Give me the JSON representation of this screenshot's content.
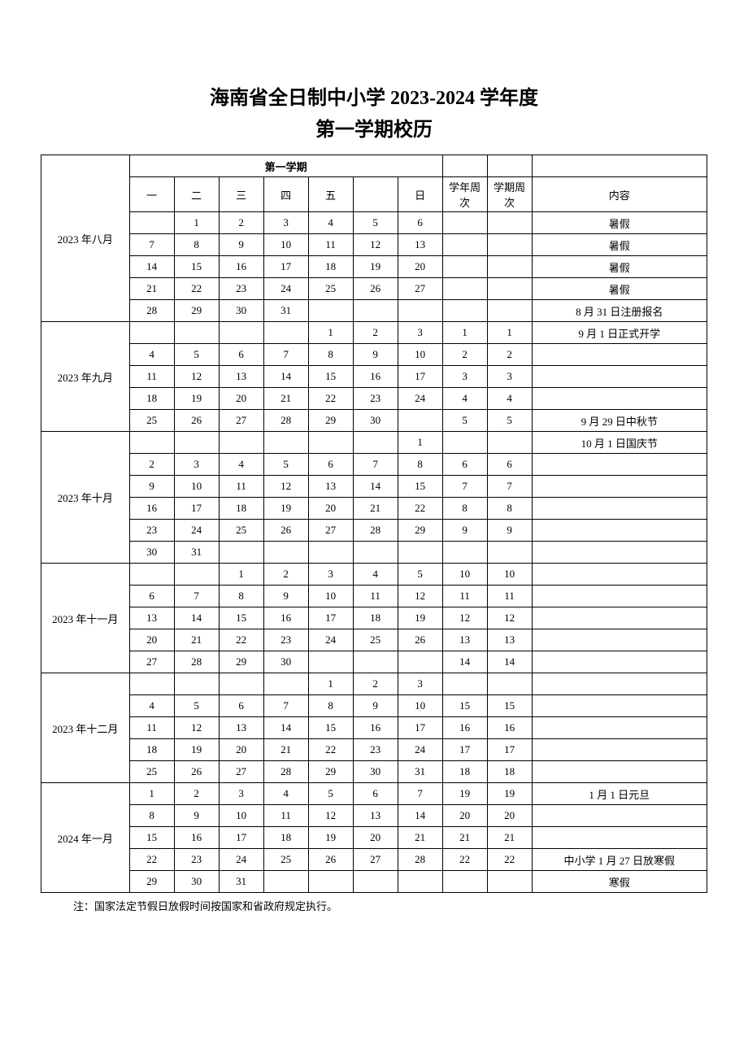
{
  "title_line1": "海南省全日制中小学 2023-2024 学年度",
  "title_line2": "第一学期校历",
  "semester_header": "第一学期",
  "weekday_headers": [
    "一",
    "二",
    "三",
    "四",
    "五",
    "",
    "日"
  ],
  "year_week_header": "学年周次",
  "term_week_header": "学期周次",
  "content_header": "内容",
  "note": "注：国家法定节假日放假时间按国家和省政府规定执行。",
  "months": [
    {
      "label": "2023 年八月",
      "rows": [
        {
          "d": [
            "",
            "1",
            "2",
            "3",
            "4",
            "5",
            "6"
          ],
          "yw": "",
          "tw": "",
          "c": "暑假"
        },
        {
          "d": [
            "7",
            "8",
            "9",
            "10",
            "11",
            "12",
            "13"
          ],
          "yw": "",
          "tw": "",
          "c": "暑假"
        },
        {
          "d": [
            "14",
            "15",
            "16",
            "17",
            "18",
            "19",
            "20"
          ],
          "yw": "",
          "tw": "",
          "c": "暑假"
        },
        {
          "d": [
            "21",
            "22",
            "23",
            "24",
            "25",
            "26",
            "27"
          ],
          "yw": "",
          "tw": "",
          "c": "暑假"
        },
        {
          "d": [
            "28",
            "29",
            "30",
            "31",
            "",
            "",
            ""
          ],
          "yw": "",
          "tw": "",
          "c": "8 月 31 日注册报名"
        }
      ]
    },
    {
      "label": "2023 年九月",
      "rows": [
        {
          "d": [
            "",
            "",
            "",
            "",
            "1",
            "2",
            "3"
          ],
          "yw": "1",
          "tw": "1",
          "c": "9 月 1 日正式开学"
        },
        {
          "d": [
            "4",
            "5",
            "6",
            "7",
            "8",
            "9",
            "10"
          ],
          "yw": "2",
          "tw": "2",
          "c": ""
        },
        {
          "d": [
            "11",
            "12",
            "13",
            "14",
            "15",
            "16",
            "17"
          ],
          "yw": "3",
          "tw": "3",
          "c": ""
        },
        {
          "d": [
            "18",
            "19",
            "20",
            "21",
            "22",
            "23",
            "24"
          ],
          "yw": "4",
          "tw": "4",
          "c": ""
        },
        {
          "d": [
            "25",
            "26",
            "27",
            "28",
            "29",
            "30",
            ""
          ],
          "yw": "5",
          "tw": "5",
          "c": "9 月 29 日中秋节"
        }
      ]
    },
    {
      "label": "2023 年十月",
      "rows": [
        {
          "d": [
            "",
            "",
            "",
            "",
            "",
            "",
            "1"
          ],
          "yw": "",
          "tw": "",
          "c": "10 月 1 日国庆节"
        },
        {
          "d": [
            "2",
            "3",
            "4",
            "5",
            "6",
            "7",
            "8"
          ],
          "yw": "6",
          "tw": "6",
          "c": ""
        },
        {
          "d": [
            "9",
            "10",
            "11",
            "12",
            "13",
            "14",
            "15"
          ],
          "yw": "7",
          "tw": "7",
          "c": ""
        },
        {
          "d": [
            "16",
            "17",
            "18",
            "19",
            "20",
            "21",
            "22"
          ],
          "yw": "8",
          "tw": "8",
          "c": ""
        },
        {
          "d": [
            "23",
            "24",
            "25",
            "26",
            "27",
            "28",
            "29"
          ],
          "yw": "9",
          "tw": "9",
          "c": ""
        },
        {
          "d": [
            "30",
            "31",
            "",
            "",
            "",
            "",
            ""
          ],
          "yw": "",
          "tw": "",
          "c": ""
        }
      ]
    },
    {
      "label": "2023 年十一月",
      "rows": [
        {
          "d": [
            "",
            "",
            "1",
            "2",
            "3",
            "4",
            "5"
          ],
          "yw": "10",
          "tw": "10",
          "c": ""
        },
        {
          "d": [
            "6",
            "7",
            "8",
            "9",
            "10",
            "11",
            "12"
          ],
          "yw": "11",
          "tw": "11",
          "c": ""
        },
        {
          "d": [
            "13",
            "14",
            "15",
            "16",
            "17",
            "18",
            "19"
          ],
          "yw": "12",
          "tw": "12",
          "c": ""
        },
        {
          "d": [
            "20",
            "21",
            "22",
            "23",
            "24",
            "25",
            "26"
          ],
          "yw": "13",
          "tw": "13",
          "c": ""
        },
        {
          "d": [
            "27",
            "28",
            "29",
            "30",
            "",
            "",
            ""
          ],
          "yw": "14",
          "tw": "14",
          "c": ""
        }
      ]
    },
    {
      "label": "2023 年十二月",
      "rows": [
        {
          "d": [
            "",
            "",
            "",
            "",
            "1",
            "2",
            "3"
          ],
          "yw": "",
          "tw": "",
          "c": ""
        },
        {
          "d": [
            "4",
            "5",
            "6",
            "7",
            "8",
            "9",
            "10"
          ],
          "yw": "15",
          "tw": "15",
          "c": ""
        },
        {
          "d": [
            "11",
            "12",
            "13",
            "14",
            "15",
            "16",
            "17"
          ],
          "yw": "16",
          "tw": "16",
          "c": ""
        },
        {
          "d": [
            "18",
            "19",
            "20",
            "21",
            "22",
            "23",
            "24"
          ],
          "yw": "17",
          "tw": "17",
          "c": ""
        },
        {
          "d": [
            "25",
            "26",
            "27",
            "28",
            "29",
            "30",
            "31"
          ],
          "yw": "18",
          "tw": "18",
          "c": ""
        }
      ]
    },
    {
      "label": "2024 年一月",
      "rows": [
        {
          "d": [
            "1",
            "2",
            "3",
            "4",
            "5",
            "6",
            "7"
          ],
          "yw": "19",
          "tw": "19",
          "c": "1 月 1 日元旦"
        },
        {
          "d": [
            "8",
            "9",
            "10",
            "11",
            "12",
            "13",
            "14"
          ],
          "yw": "20",
          "tw": "20",
          "c": ""
        },
        {
          "d": [
            "15",
            "16",
            "17",
            "18",
            "19",
            "20",
            "21"
          ],
          "yw": "21",
          "tw": "21",
          "c": ""
        },
        {
          "d": [
            "22",
            "23",
            "24",
            "25",
            "26",
            "27",
            "28"
          ],
          "yw": "22",
          "tw": "22",
          "c": "中小学 1 月 27 日放寒假"
        },
        {
          "d": [
            "29",
            "30",
            "31",
            "",
            "",
            "",
            ""
          ],
          "yw": "",
          "tw": "",
          "c": "寒假"
        }
      ]
    }
  ]
}
